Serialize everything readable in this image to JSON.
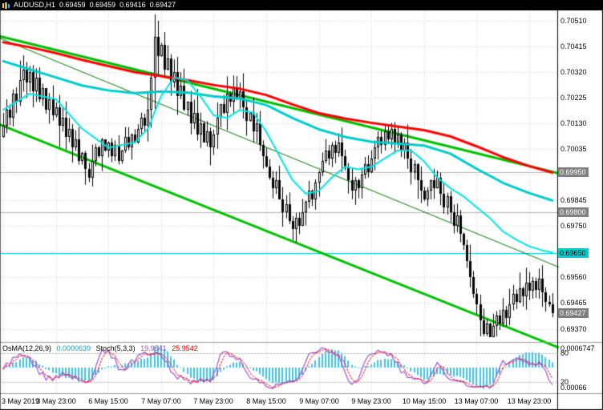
{
  "titlebar": {
    "symbol": "AUDUSD,H1",
    "open": "0.69459",
    "high": "0.69459",
    "low": "0.69416",
    "close": "0.69427"
  },
  "chart_data": {
    "type": "candlestick",
    "symbol": "AUDUSD",
    "timeframe": "H1",
    "ylim": [
      0.6933,
      0.70545
    ],
    "colors": {
      "background": "#ffffff",
      "grid": "#d0d0d0",
      "bull": "#ffffff",
      "bear": "#000000",
      "outline": "#000000",
      "axis_text": "#000000"
    },
    "price_axis": {
      "grid_step": 0.00095,
      "grid": [
        {
          "value": 0.7051,
          "label": "0.70510"
        },
        {
          "value": 0.70415,
          "label": "0.70415"
        },
        {
          "value": 0.7032,
          "label": "0.70320"
        },
        {
          "value": 0.70225,
          "label": "0.70225"
        },
        {
          "value": 0.7013,
          "label": "0.70130"
        },
        {
          "value": 0.70035,
          "label": "0.70035"
        },
        {
          "value": 0.6994,
          "label": ""
        },
        {
          "value": 0.69845,
          "label": "0.69845"
        },
        {
          "value": 0.6975,
          "label": "0.69750"
        },
        {
          "value": 0.69655,
          "label": ""
        },
        {
          "value": 0.6956,
          "label": "0.69560"
        },
        {
          "value": 0.69465,
          "label": "0.69465"
        },
        {
          "value": 0.6937,
          "label": "0.69370"
        }
      ],
      "badges": [
        {
          "label": "0.69950",
          "value": 0.6995,
          "bg": "#808080",
          "fg": "#ffffff",
          "line": "#b4b4b4"
        },
        {
          "label": "0.69800",
          "value": 0.698,
          "bg": "#808080",
          "fg": "#ffffff",
          "line": "#b4b4b4"
        },
        {
          "label": "0.69650",
          "value": 0.6965,
          "bg": "#00cccc",
          "fg": "#000000",
          "line": "#00cccc"
        },
        {
          "label": "0.69427",
          "value": 0.69427,
          "bg": "#7d7d7d",
          "fg": "#ffffff",
          "line": ""
        }
      ]
    },
    "time_axis": [
      {
        "label": "3 May 2019",
        "bar": 0
      },
      {
        "label": "3 May 23:00",
        "bar": 16
      },
      {
        "label": "6 May 15:00",
        "bar": 32
      },
      {
        "label": "7 May 07:00",
        "bar": 48
      },
      {
        "label": "7 May 23:00",
        "bar": 64
      },
      {
        "label": "8 May 15:00",
        "bar": 80
      },
      {
        "label": "9 May 07:00",
        "bar": 96
      },
      {
        "label": "9 May 23:00",
        "bar": 112
      },
      {
        "label": "10 May 15:00",
        "bar": 128
      },
      {
        "label": "13 May 07:00",
        "bar": 144
      },
      {
        "label": "13 May 23:00",
        "bar": 160
      }
    ],
    "candles": {
      "first_open": 0.7008,
      "closes": [
        0.7012,
        0.7018,
        0.7015,
        0.7024,
        0.7021,
        0.7029,
        0.7033,
        0.7028,
        0.7032,
        0.7025,
        0.703,
        0.7022,
        0.7026,
        0.7018,
        0.7022,
        0.7016,
        0.7019,
        0.7012,
        0.7015,
        0.7008,
        0.7011,
        0.7004,
        0.7007,
        0.6999,
        0.7002,
        0.6996,
        0.6993,
        0.6999,
        0.7004,
        0.7001,
        0.7007,
        0.7003,
        0.7006,
        0.7001,
        0.7005,
        0.6999,
        0.7003,
        0.7008,
        0.7004,
        0.7009,
        0.7006,
        0.7011,
        0.7015,
        0.7012,
        0.7018,
        0.703,
        0.7045,
        0.7038,
        0.7042,
        0.7033,
        0.7037,
        0.7028,
        0.7032,
        0.7023,
        0.7027,
        0.7018,
        0.7021,
        0.7013,
        0.7017,
        0.7009,
        0.7013,
        0.7006,
        0.701,
        0.7004,
        0.7009,
        0.7015,
        0.702,
        0.7017,
        0.7024,
        0.7021,
        0.7026,
        0.7022,
        0.7025,
        0.7019,
        0.7014,
        0.7017,
        0.701,
        0.7013,
        0.7005,
        0.7001,
        0.6997,
        0.6993,
        0.6989,
        0.6992,
        0.6985,
        0.698,
        0.6983,
        0.6977,
        0.6974,
        0.6978,
        0.6975,
        0.698,
        0.6984,
        0.6988,
        0.6985,
        0.6991,
        0.6995,
        0.6999,
        0.7003,
        0.7,
        0.7005,
        0.7002,
        0.7006,
        0.7001,
        0.6997,
        0.6992,
        0.6988,
        0.6992,
        0.6989,
        0.6994,
        0.6998,
        0.6995,
        0.7,
        0.7004,
        0.7008,
        0.7005,
        0.701,
        0.7007,
        0.7011,
        0.7006,
        0.7009,
        0.7003,
        0.7006,
        0.7,
        0.6995,
        0.6998,
        0.6992,
        0.6988,
        0.6985,
        0.6988,
        0.6992,
        0.6989,
        0.6993,
        0.6987,
        0.6982,
        0.6986,
        0.698,
        0.6975,
        0.6979,
        0.6972,
        0.6968,
        0.6962,
        0.6956,
        0.695,
        0.6946,
        0.694,
        0.6935,
        0.6939,
        0.6934,
        0.6938,
        0.6942,
        0.6939,
        0.6944,
        0.6941,
        0.6946,
        0.695,
        0.6947,
        0.6952,
        0.6949,
        0.6954,
        0.6951,
        0.69545,
        0.69515,
        0.69555,
        0.69505,
        0.6947,
        0.69459,
        0.69427
      ]
    },
    "overlays": {
      "ma_lines": [
        {
          "name": "red-slow-ma",
          "color": "#ff0000",
          "width": 3,
          "points": [
            [
              0,
              0.7043
            ],
            [
              8,
              0.70412
            ],
            [
              16,
              0.7039
            ],
            [
              24,
              0.70365
            ],
            [
              32,
              0.70342
            ],
            [
              40,
              0.7032
            ],
            [
              48,
              0.70305
            ],
            [
              56,
              0.7029
            ],
            [
              64,
              0.70272
            ],
            [
              72,
              0.70258
            ],
            [
              80,
              0.70235
            ],
            [
              88,
              0.702
            ],
            [
              96,
              0.70168
            ],
            [
              104,
              0.70148
            ],
            [
              112,
              0.70132
            ],
            [
              120,
              0.70118
            ],
            [
              128,
              0.70105
            ],
            [
              136,
              0.70082
            ],
            [
              144,
              0.70045
            ],
            [
              152,
              0.70005
            ],
            [
              160,
              0.69972
            ],
            [
              167,
              0.69948
            ]
          ]
        },
        {
          "name": "cyan-medium-ma",
          "color": "#00cccc",
          "width": 3,
          "points": [
            [
              0,
              0.7036
            ],
            [
              8,
              0.7033
            ],
            [
              16,
              0.703
            ],
            [
              24,
              0.7027
            ],
            [
              32,
              0.70252
            ],
            [
              40,
              0.70242
            ],
            [
              48,
              0.70248
            ],
            [
              56,
              0.70244
            ],
            [
              64,
              0.7023
            ],
            [
              72,
              0.70222
            ],
            [
              80,
              0.70198
            ],
            [
              88,
              0.7015
            ],
            [
              96,
              0.70108
            ],
            [
              104,
              0.7008
            ],
            [
              112,
              0.70062
            ],
            [
              120,
              0.70055
            ],
            [
              128,
              0.70048
            ],
            [
              136,
              0.70018
            ],
            [
              144,
              0.69962
            ],
            [
              152,
              0.6991
            ],
            [
              160,
              0.69872
            ],
            [
              167,
              0.69845
            ]
          ]
        },
        {
          "name": "cyan-fast-ma",
          "color": "#00e5e5",
          "width": 2,
          "points": [
            [
              0,
              0.7018
            ],
            [
              8,
              0.7024
            ],
            [
              16,
              0.7022
            ],
            [
              24,
              0.7011
            ],
            [
              32,
              0.7004
            ],
            [
              40,
              0.7006
            ],
            [
              44,
              0.7011
            ],
            [
              48,
              0.7023
            ],
            [
              52,
              0.703
            ],
            [
              56,
              0.7029
            ],
            [
              60,
              0.7023
            ],
            [
              64,
              0.7016
            ],
            [
              68,
              0.7015
            ],
            [
              72,
              0.7018
            ],
            [
              76,
              0.7017
            ],
            [
              80,
              0.701
            ],
            [
              84,
              0.7001
            ],
            [
              88,
              0.6992
            ],
            [
              92,
              0.6987
            ],
            [
              96,
              0.6988
            ],
            [
              100,
              0.6993
            ],
            [
              104,
              0.6997
            ],
            [
              108,
              0.6996
            ],
            [
              112,
              0.6997
            ],
            [
              116,
              0.7
            ],
            [
              120,
              0.7003
            ],
            [
              124,
              0.7003
            ],
            [
              128,
              0.6999
            ],
            [
              132,
              0.6993
            ],
            [
              136,
              0.6989
            ],
            [
              140,
              0.6986
            ],
            [
              144,
              0.6982
            ],
            [
              148,
              0.6978
            ],
            [
              152,
              0.6973
            ],
            [
              156,
              0.697
            ],
            [
              160,
              0.69675
            ],
            [
              164,
              0.6966
            ],
            [
              167,
              0.69652
            ]
          ]
        }
      ],
      "trendlines": [
        {
          "name": "channel-upper",
          "color": "#00c000",
          "width": 3,
          "from": [
            -2,
            0.70455
          ],
          "to": [
            169,
            0.69945
          ]
        },
        {
          "name": "channel-lower",
          "color": "#00c000",
          "width": 3,
          "from": [
            -2,
            0.7013
          ],
          "to": [
            169,
            0.693
          ]
        },
        {
          "name": "inner-trendline",
          "color": "#007800",
          "width": 1,
          "from": [
            -2,
            0.7045
          ],
          "to": [
            169,
            0.69598
          ]
        }
      ]
    },
    "indicators": {
      "osma": {
        "label": "OsMA(12,26,9)",
        "value": "0.0000639",
        "periods": [
          12,
          26,
          9
        ],
        "color": "#3fc3ec",
        "scale_max": "0.0006747",
        "scale_min": "0.00066"
      },
      "stoch": {
        "label": "Stoch(5,3,3)",
        "main_value": "19.9541",
        "signal_value": "25.9542",
        "periods": [
          5,
          3,
          3
        ],
        "main_color": "#a050d0",
        "signal_color": "#ff0000",
        "levels": [
          80,
          20
        ]
      }
    }
  }
}
